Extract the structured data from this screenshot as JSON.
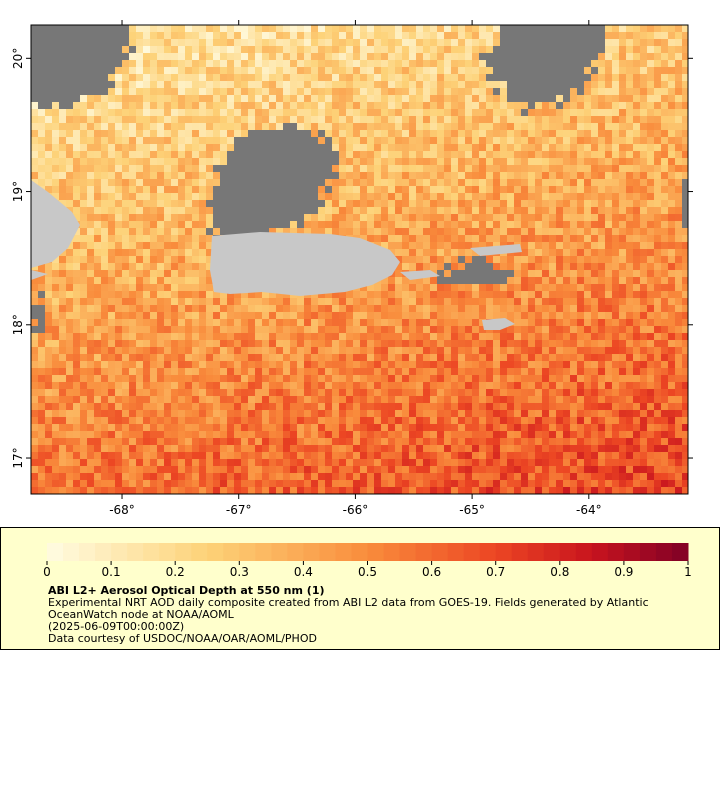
{
  "map": {
    "xaxis": {
      "lim": [
        -68.78,
        -63.15
      ],
      "ticks": [
        {
          "value": -68,
          "label": "-68°"
        },
        {
          "value": -67,
          "label": "-67°"
        },
        {
          "value": -66,
          "label": "-66°"
        },
        {
          "value": -65,
          "label": "-65°"
        },
        {
          "value": -64,
          "label": "-64°"
        }
      ]
    },
    "yaxis": {
      "lim": [
        16.73,
        20.25
      ],
      "ticks": [
        {
          "value": 17,
          "label": "17°"
        },
        {
          "value": 18,
          "label": "18°"
        },
        {
          "value": 19,
          "label": "19°"
        },
        {
          "value": 20,
          "label": "20°"
        }
      ]
    },
    "colorbar": {
      "lim": [
        0,
        1
      ],
      "ticks": [
        0,
        0.1,
        0.2,
        0.3,
        0.4,
        0.5,
        0.6,
        0.7,
        0.8,
        0.9,
        1
      ]
    },
    "title": "ABI L2+ Aerosol Optical Depth at 550 nm (1)",
    "description": [
      "Experimental NRT AOD daily composite created from ABI L2 data from GOES-19. Fields generated by Atlantic",
      "OceanWatch node at NOAA/AOML",
      "(2025-06-09T00:00:00Z)",
      "Data courtesy of USDOC/NOAA/OAR/AOML/PHOD"
    ]
  }
}
